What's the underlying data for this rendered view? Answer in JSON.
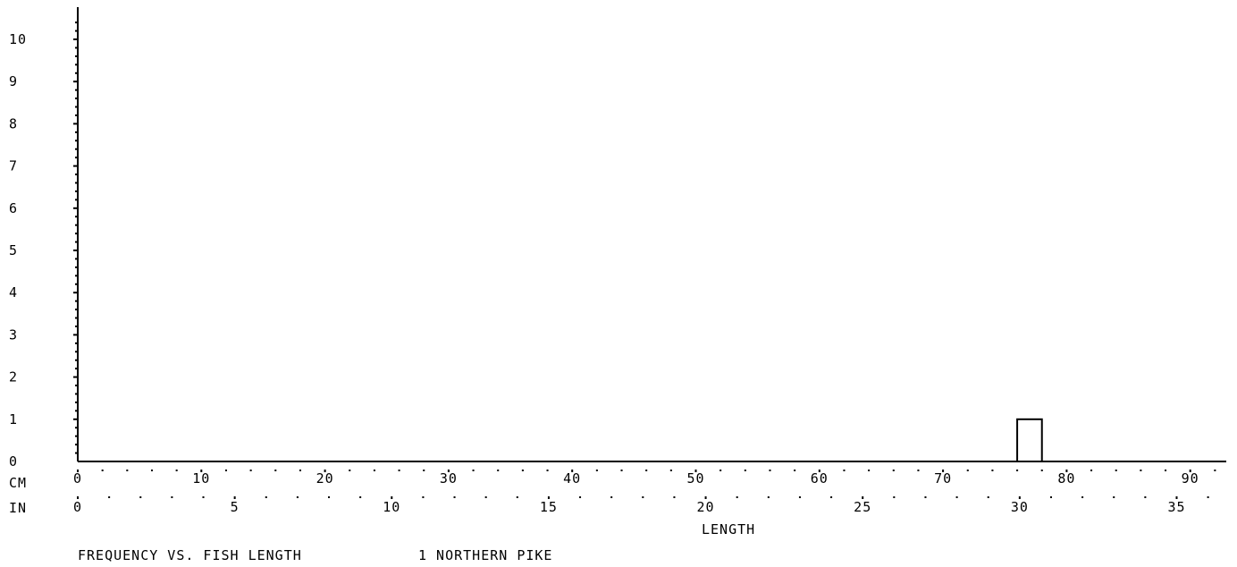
{
  "chart_data": {
    "type": "bar",
    "title": "FREQUENCY VS. FISH LENGTH",
    "subtitle": "1 NORTHERN PIKE",
    "xlabel": "LENGTH",
    "ylabel": "",
    "x_unit_cm_label": "CM",
    "x_unit_in_label": "IN",
    "xlim_cm": [
      0,
      93
    ],
    "ylim": [
      0,
      10.5
    ],
    "yticks": [
      "0",
      "1",
      "2",
      "3",
      "4",
      "5",
      "6",
      "7",
      "8",
      "9",
      "10"
    ],
    "xticks_cm": [
      "0",
      "10",
      "20",
      "30",
      "40",
      "50",
      "60",
      "70",
      "80",
      "90"
    ],
    "xticks_in": [
      "0",
      "5",
      "10",
      "15",
      "20",
      "25",
      "30",
      "35"
    ],
    "bars": [
      {
        "x_start_cm": 76,
        "x_end_cm": 78,
        "value": 1
      }
    ],
    "grid": false,
    "colors": {
      "ink": "#000000",
      "background": "#ffffff"
    }
  }
}
